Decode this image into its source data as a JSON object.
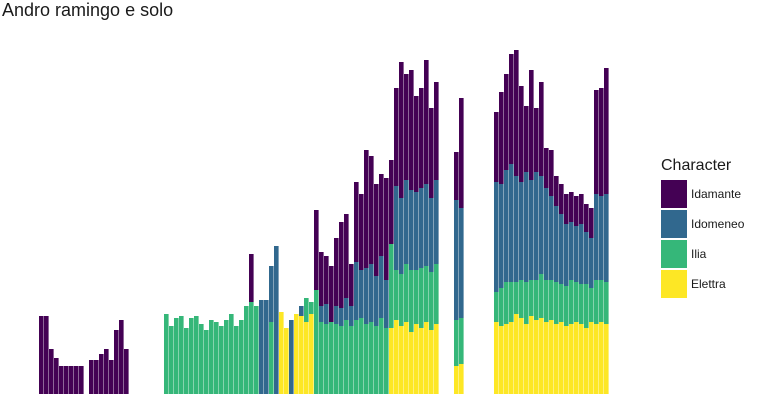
{
  "chart_data": {
    "type": "bar",
    "stacked": true,
    "title": "Andro ramingo e solo",
    "xlabel": "",
    "ylabel": "",
    "grid": false,
    "legend": {
      "title": "Character",
      "position": "right"
    },
    "series": [
      {
        "name": "Elettra",
        "color": "#FDE725"
      },
      {
        "name": "Ilia",
        "color": "#35B779"
      },
      {
        "name": "Idomeneo",
        "color": "#31688E"
      },
      {
        "name": "Idamante",
        "color": "#440154"
      }
    ],
    "legend_order": [
      "Idamante",
      "Idomeneo",
      "Ilia",
      "Elettra"
    ],
    "ylim": [
      0,
      350
    ],
    "bars": [
      {
        "x": 1,
        "values": {
          "Idamante": 78
        }
      },
      {
        "x": 2,
        "values": {
          "Idamante": 78
        }
      },
      {
        "x": 3,
        "values": {
          "Idamante": 45
        }
      },
      {
        "x": 4,
        "values": {
          "Idamante": 36
        }
      },
      {
        "x": 5,
        "values": {
          "Idamante": 28
        }
      },
      {
        "x": 6,
        "values": {
          "Idamante": 28
        }
      },
      {
        "x": 7,
        "values": {
          "Idamante": 28
        }
      },
      {
        "x": 8,
        "values": {
          "Idamante": 28
        }
      },
      {
        "x": 9,
        "values": {
          "Idamante": 28
        }
      },
      {
        "x": 11,
        "values": {
          "Idamante": 34
        }
      },
      {
        "x": 12,
        "values": {
          "Idamante": 34
        }
      },
      {
        "x": 13,
        "values": {
          "Idamante": 40
        }
      },
      {
        "x": 14,
        "values": {
          "Idamante": 45
        }
      },
      {
        "x": 15,
        "values": {
          "Idamante": 34
        }
      },
      {
        "x": 16,
        "values": {
          "Idamante": 64
        }
      },
      {
        "x": 17,
        "values": {
          "Idamante": 74
        }
      },
      {
        "x": 18,
        "values": {
          "Idamante": 45
        }
      },
      {
        "x": 26,
        "values": {
          "Ilia": 80
        }
      },
      {
        "x": 27,
        "values": {
          "Ilia": 68
        }
      },
      {
        "x": 28,
        "values": {
          "Ilia": 76
        }
      },
      {
        "x": 29,
        "values": {
          "Ilia": 78
        }
      },
      {
        "x": 30,
        "values": {
          "Ilia": 66
        }
      },
      {
        "x": 31,
        "values": {
          "Ilia": 76
        }
      },
      {
        "x": 32,
        "values": {
          "Ilia": 78
        }
      },
      {
        "x": 33,
        "values": {
          "Ilia": 70
        }
      },
      {
        "x": 34,
        "values": {
          "Ilia": 64
        }
      },
      {
        "x": 35,
        "values": {
          "Ilia": 74
        }
      },
      {
        "x": 36,
        "values": {
          "Ilia": 72
        }
      },
      {
        "x": 37,
        "values": {
          "Ilia": 68
        }
      },
      {
        "x": 38,
        "values": {
          "Ilia": 74
        }
      },
      {
        "x": 39,
        "values": {
          "Ilia": 80
        }
      },
      {
        "x": 40,
        "values": {
          "Ilia": 68
        }
      },
      {
        "x": 41,
        "values": {
          "Ilia": 74
        }
      },
      {
        "x": 42,
        "values": {
          "Ilia": 88
        }
      },
      {
        "x": 43,
        "values": {
          "Ilia": 92,
          "Idamante": 48
        }
      },
      {
        "x": 44,
        "values": {
          "Ilia": 88
        }
      },
      {
        "x": 45,
        "values": {
          "Idomeneo": 94
        }
      },
      {
        "x": 46,
        "values": {
          "Idomeneo": 94
        }
      },
      {
        "x": 47,
        "values": {
          "Ilia": 72,
          "Idomeneo": 56
        }
      },
      {
        "x": 48,
        "values": {
          "Idomeneo": 148
        }
      },
      {
        "x": 49,
        "values": {
          "Elettra": 82
        }
      },
      {
        "x": 50,
        "values": {
          "Elettra": 66
        }
      },
      {
        "x": 51,
        "values": {
          "Idomeneo": 74
        }
      },
      {
        "x": 52,
        "values": {
          "Elettra": 80
        }
      },
      {
        "x": 53,
        "values": {
          "Elettra": 78,
          "Idomeneo": 10
        }
      },
      {
        "x": 54,
        "values": {
          "Elettra": 72,
          "Ilia": 24
        }
      },
      {
        "x": 55,
        "values": {
          "Elettra": 80,
          "Ilia": 12
        }
      },
      {
        "x": 56,
        "values": {
          "Ilia": 104,
          "Idamante": 80
        }
      },
      {
        "x": 57,
        "values": {
          "Ilia": 72,
          "Idomeneo": 16,
          "Idamante": 54
        }
      },
      {
        "x": 58,
        "values": {
          "Ilia": 70,
          "Idomeneo": 20,
          "Idamante": 48
        }
      },
      {
        "x": 59,
        "values": {
          "Ilia": 72,
          "Idamante": 56
        }
      },
      {
        "x": 60,
        "values": {
          "Ilia": 70,
          "Idomeneo": 18,
          "Idamante": 68
        }
      },
      {
        "x": 61,
        "values": {
          "Ilia": 68,
          "Idomeneo": 18,
          "Idamante": 86
        }
      },
      {
        "x": 62,
        "values": {
          "Ilia": 74,
          "Idomeneo": 22,
          "Idamante": 84
        }
      },
      {
        "x": 63,
        "values": {
          "Ilia": 68,
          "Idomeneo": 20,
          "Idamante": 42
        }
      },
      {
        "x": 64,
        "values": {
          "Ilia": 74,
          "Idomeneo": 58,
          "Idamante": 80
        }
      },
      {
        "x": 65,
        "values": {
          "Ilia": 76,
          "Idomeneo": 48,
          "Idamante": 76
        }
      },
      {
        "x": 66,
        "values": {
          "Ilia": 70,
          "Idomeneo": 56,
          "Idamante": 118
        }
      },
      {
        "x": 67,
        "values": {
          "Ilia": 72,
          "Idomeneo": 58,
          "Idamante": 108
        }
      },
      {
        "x": 68,
        "values": {
          "Ilia": 68,
          "Idomeneo": 50,
          "Idamante": 92
        }
      },
      {
        "x": 69,
        "values": {
          "Ilia": 76,
          "Idomeneo": 62,
          "Idamante": 82
        }
      },
      {
        "x": 70,
        "values": {
          "Ilia": 66,
          "Idomeneo": 48,
          "Idamante": 102
        }
      },
      {
        "x": 71,
        "values": {
          "Elettra": 66,
          "Ilia": 84,
          "Idamante": 84
        }
      },
      {
        "x": 72,
        "values": {
          "Elettra": 74,
          "Ilia": 50,
          "Idomeneo": 84,
          "Idamante": 98
        }
      },
      {
        "x": 73,
        "values": {
          "Elettra": 68,
          "Ilia": 52,
          "Idomeneo": 76,
          "Idamante": 136
        }
      },
      {
        "x": 74,
        "values": {
          "Elettra": 72,
          "Ilia": 58,
          "Idomeneo": 84,
          "Idamante": 106
        }
      },
      {
        "x": 75,
        "values": {
          "Elettra": 62,
          "Ilia": 62,
          "Idomeneo": 80,
          "Idamante": 120
        }
      },
      {
        "x": 76,
        "values": {
          "Elettra": 70,
          "Ilia": 54,
          "Idomeneo": 78,
          "Idamante": 96
        }
      },
      {
        "x": 77,
        "values": {
          "Elettra": 66,
          "Ilia": 60,
          "Idomeneo": 80,
          "Idamante": 100
        }
      },
      {
        "x": 78,
        "values": {
          "Elettra": 72,
          "Ilia": 56,
          "Idomeneo": 82,
          "Idamante": 124
        }
      },
      {
        "x": 79,
        "values": {
          "Elettra": 64,
          "Ilia": 58,
          "Idomeneo": 74,
          "Idamante": 90
        }
      },
      {
        "x": 80,
        "values": {
          "Elettra": 70,
          "Ilia": 60,
          "Idomeneo": 84,
          "Idamante": 98
        }
      },
      {
        "x": 84,
        "values": {
          "Elettra": 28,
          "Ilia": 46,
          "Idomeneo": 120,
          "Idamante": 48
        }
      },
      {
        "x": 85,
        "values": {
          "Elettra": 30,
          "Ilia": 46,
          "Idomeneo": 110,
          "Idamante": 110
        }
      },
      {
        "x": 92,
        "values": {
          "Elettra": 72,
          "Ilia": 30,
          "Idomeneo": 110,
          "Idamante": 70
        }
      },
      {
        "x": 93,
        "values": {
          "Elettra": 68,
          "Ilia": 38,
          "Idomeneo": 104,
          "Idamante": 92
        }
      },
      {
        "x": 94,
        "values": {
          "Elettra": 70,
          "Ilia": 42,
          "Idomeneo": 112,
          "Idamante": 96
        }
      },
      {
        "x": 95,
        "values": {
          "Elettra": 72,
          "Ilia": 40,
          "Idomeneo": 118,
          "Idamante": 110
        }
      },
      {
        "x": 96,
        "values": {
          "Elettra": 80,
          "Ilia": 32,
          "Idomeneo": 106,
          "Idamante": 126
        }
      },
      {
        "x": 97,
        "values": {
          "Elettra": 76,
          "Ilia": 38,
          "Idomeneo": 98,
          "Idamante": 96
        }
      },
      {
        "x": 98,
        "values": {
          "Elettra": 70,
          "Ilia": 42,
          "Idomeneo": 110,
          "Idamante": 66
        }
      },
      {
        "x": 99,
        "values": {
          "Elettra": 78,
          "Ilia": 36,
          "Idomeneo": 100,
          "Idamante": 110
        }
      },
      {
        "x": 100,
        "values": {
          "Elettra": 74,
          "Ilia": 40,
          "Idomeneo": 108,
          "Idamante": 64
        }
      },
      {
        "x": 101,
        "values": {
          "Elettra": 76,
          "Ilia": 44,
          "Idomeneo": 98,
          "Idamante": 94
        }
      },
      {
        "x": 102,
        "values": {
          "Elettra": 72,
          "Ilia": 42,
          "Idomeneo": 92,
          "Idamante": 40
        }
      },
      {
        "x": 103,
        "values": {
          "Elettra": 74,
          "Ilia": 40,
          "Idomeneo": 84,
          "Idamante": 46
        }
      },
      {
        "x": 104,
        "values": {
          "Elettra": 70,
          "Ilia": 42,
          "Idomeneo": 76,
          "Idamante": 30
        }
      },
      {
        "x": 105,
        "values": {
          "Elettra": 72,
          "Ilia": 38,
          "Idomeneo": 70,
          "Idamante": 30
        }
      },
      {
        "x": 106,
        "values": {
          "Elettra": 68,
          "Ilia": 40,
          "Idomeneo": 62,
          "Idamante": 30
        }
      },
      {
        "x": 107,
        "values": {
          "Elettra": 70,
          "Ilia": 44,
          "Idomeneo": 58,
          "Idamante": 30
        }
      },
      {
        "x": 108,
        "values": {
          "Elettra": 72,
          "Ilia": 40,
          "Idomeneo": 56,
          "Idamante": 30
        }
      },
      {
        "x": 109,
        "values": {
          "Elettra": 70,
          "Ilia": 40,
          "Idomeneo": 60,
          "Idamante": 30
        }
      },
      {
        "x": 110,
        "values": {
          "Elettra": 66,
          "Ilia": 44,
          "Idomeneo": 52,
          "Idamante": 28
        }
      },
      {
        "x": 111,
        "values": {
          "Elettra": 72,
          "Ilia": 34,
          "Idomeneo": 50,
          "Idamante": 30
        }
      },
      {
        "x": 112,
        "values": {
          "Elettra": 70,
          "Ilia": 44,
          "Idomeneo": 86,
          "Idamante": 104
        }
      },
      {
        "x": 113,
        "values": {
          "Elettra": 72,
          "Ilia": 42,
          "Idomeneo": 84,
          "Idamante": 108
        }
      },
      {
        "x": 114,
        "values": {
          "Elettra": 70,
          "Ilia": 42,
          "Idomeneo": 88,
          "Idamante": 126
        }
      }
    ]
  }
}
